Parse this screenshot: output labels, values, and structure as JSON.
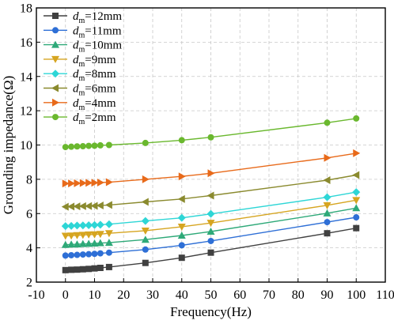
{
  "chart_data": {
    "type": "line",
    "xlabel": "Frequency(Hz)",
    "ylabel": "Grounding impedance(Ω)",
    "xlim": [
      -10,
      110
    ],
    "ylim": [
      2,
      18
    ],
    "xticks": [
      -10,
      0,
      10,
      20,
      30,
      40,
      50,
      60,
      70,
      80,
      90,
      100,
      110
    ],
    "yticks": [
      2,
      4,
      6,
      8,
      10,
      12,
      14,
      16,
      18
    ],
    "grid": "dashed",
    "legend_position": "top-left",
    "x": [
      0,
      2,
      4,
      6,
      8,
      10,
      12,
      15,
      27.5,
      40,
      50,
      90,
      100
    ],
    "series": [
      {
        "name_prefix": "d",
        "name_sub": "m",
        "name_suffix": "=12mm",
        "color": "#404040",
        "marker": "square",
        "values": [
          2.7,
          2.72,
          2.73,
          2.75,
          2.77,
          2.8,
          2.83,
          2.88,
          3.12,
          3.42,
          3.72,
          4.85,
          5.15
        ]
      },
      {
        "name_prefix": "d",
        "name_sub": "m",
        "name_suffix": "=11mm",
        "color": "#2e6fd6",
        "marker": "circle",
        "values": [
          3.55,
          3.57,
          3.59,
          3.61,
          3.63,
          3.65,
          3.68,
          3.72,
          3.9,
          4.15,
          4.4,
          5.5,
          5.78
        ]
      },
      {
        "name_prefix": "d",
        "name_sub": "m",
        "name_suffix": "=10mm",
        "color": "#2ea978",
        "marker": "triangle-up",
        "values": [
          4.18,
          4.2,
          4.21,
          4.23,
          4.24,
          4.26,
          4.28,
          4.3,
          4.48,
          4.72,
          4.95,
          6.02,
          6.32
        ]
      },
      {
        "name_prefix": "d",
        "name_sub": "m",
        "name_suffix": "=9mm",
        "color": "#d6a520",
        "marker": "triangle-down",
        "values": [
          4.7,
          4.71,
          4.73,
          4.75,
          4.77,
          4.78,
          4.8,
          4.85,
          5.0,
          5.23,
          5.45,
          6.48,
          6.78
        ]
      },
      {
        "name_prefix": "d",
        "name_sub": "m",
        "name_suffix": "=8mm",
        "color": "#2ed6d6",
        "marker": "diamond",
        "values": [
          5.27,
          5.28,
          5.3,
          5.31,
          5.32,
          5.33,
          5.35,
          5.38,
          5.57,
          5.75,
          5.98,
          6.95,
          7.25
        ]
      },
      {
        "name_prefix": "d",
        "name_sub": "m",
        "name_suffix": "=6mm",
        "color": "#8a8a2e",
        "marker": "triangle-left",
        "values": [
          6.4,
          6.41,
          6.42,
          6.43,
          6.44,
          6.45,
          6.47,
          6.5,
          6.68,
          6.85,
          7.05,
          7.95,
          8.25
        ]
      },
      {
        "name_prefix": "d",
        "name_sub": "m",
        "name_suffix": "=4mm",
        "color": "#e86a1a",
        "marker": "triangle-right",
        "values": [
          7.75,
          7.76,
          7.77,
          7.78,
          7.79,
          7.8,
          7.81,
          7.83,
          8.0,
          8.17,
          8.35,
          9.25,
          9.52
        ]
      },
      {
        "name_prefix": "d",
        "name_sub": "m",
        "name_suffix": "=2mm",
        "color": "#6ab82e",
        "marker": "circle",
        "values": [
          9.88,
          9.9,
          9.92,
          9.93,
          9.95,
          9.96,
          9.98,
          10.0,
          10.12,
          10.28,
          10.45,
          11.3,
          11.55
        ]
      }
    ]
  }
}
